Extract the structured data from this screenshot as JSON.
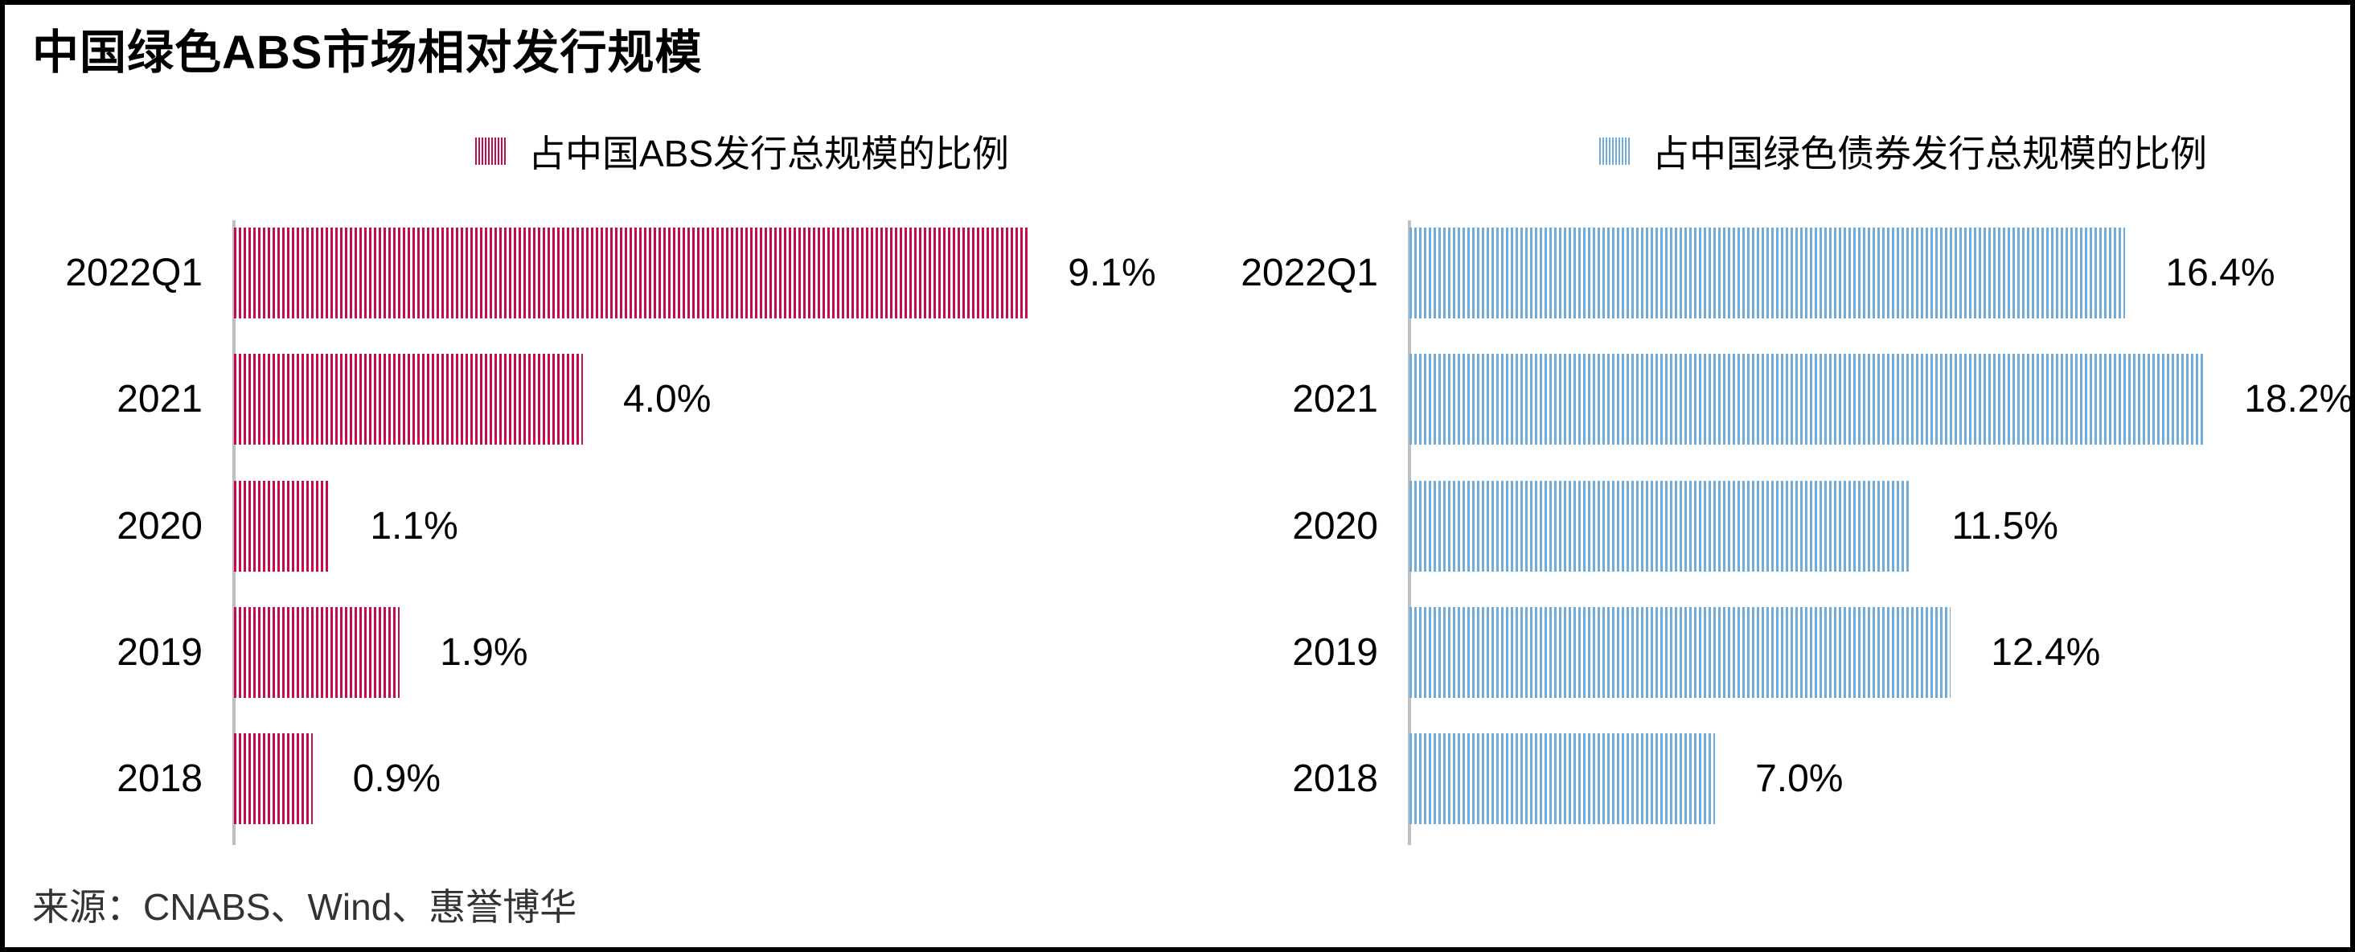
{
  "title": "中国绿色ABS市场相对发行规模",
  "source": "来源：CNABS、Wind、惠誉博华",
  "colors": {
    "abs_pink": "#C50B51",
    "green_bond_blue": "#6FACDB",
    "axis_gray": "#BFBFBF"
  },
  "chart_data": [
    {
      "type": "bar",
      "orientation": "horizontal",
      "legend": "占中国ABS发行总规模的比例",
      "color": "#C50B51",
      "categories": [
        "2022Q1",
        "2021",
        "2020",
        "2019",
        "2018"
      ],
      "values": [
        9.1,
        4.0,
        1.1,
        1.9,
        0.9
      ],
      "labels": [
        "9.1%",
        "4.0%",
        "1.1%",
        "1.9%",
        "0.9%"
      ],
      "xlim": [
        0,
        10.83
      ],
      "grid": false,
      "legend_position": "top"
    },
    {
      "type": "bar",
      "orientation": "horizontal",
      "legend": "占中国绿色债券发行总规模的比例",
      "color": "#6FACDB",
      "categories": [
        "2022Q1",
        "2021",
        "2020",
        "2019",
        "2018"
      ],
      "values": [
        16.4,
        18.2,
        11.5,
        12.4,
        7.0
      ],
      "labels": [
        "16.4%",
        "18.2%",
        "11.5%",
        "12.4%",
        "7.0%"
      ],
      "xlim": [
        0,
        21.77
      ],
      "grid": false,
      "legend_position": "top"
    }
  ]
}
